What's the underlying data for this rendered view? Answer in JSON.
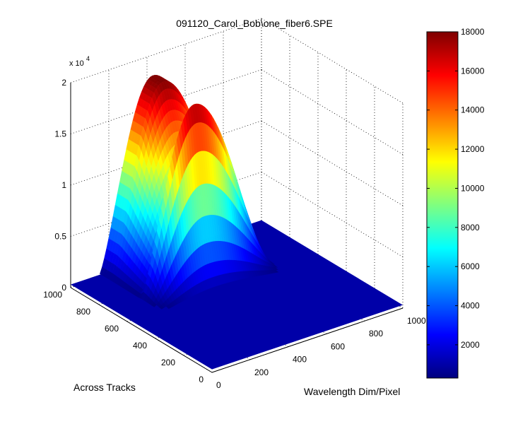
{
  "figure": {
    "title": "091120_Carol_Bob\\one_fiber6.SPE"
  },
  "chart_data": {
    "type": "surface",
    "title": "091120_Carol_Bob\\one_fiber6.SPE",
    "xlabel": "Wavelength Dim/Pixel",
    "ylabel": "Across Tracks",
    "zlabel": "",
    "z_exponent_label": "x 10",
    "z_exponent_power": "4",
    "xlim": [
      0,
      1000
    ],
    "ylim": [
      0,
      1000
    ],
    "zlim": [
      0,
      20000
    ],
    "x_ticks": [
      "0",
      "200",
      "400",
      "600",
      "800",
      "1000"
    ],
    "y_ticks": [
      "0",
      "200",
      "400",
      "600",
      "800",
      "1000"
    ],
    "z_ticks": [
      "0",
      "0.5",
      "1",
      "1.5",
      "2"
    ],
    "grid": true,
    "colormap": "jet",
    "colorbar": {
      "ticks": [
        "2000",
        "4000",
        "6000",
        "8000",
        "10000",
        "12000",
        "14000",
        "16000",
        "18000"
      ],
      "range": [
        300,
        18000
      ]
    },
    "surface": {
      "description_values": {
        "baseline": 300,
        "peak_value": 18000,
        "peak_wavelength_pixel": 430,
        "track_range": [
          720,
          1000
        ],
        "wavelength_range": [
          150,
          800
        ]
      }
    },
    "colors": {
      "jet_low": "#00007f",
      "jet_mid": "#7fff7f",
      "jet_high": "#7f0000"
    }
  }
}
